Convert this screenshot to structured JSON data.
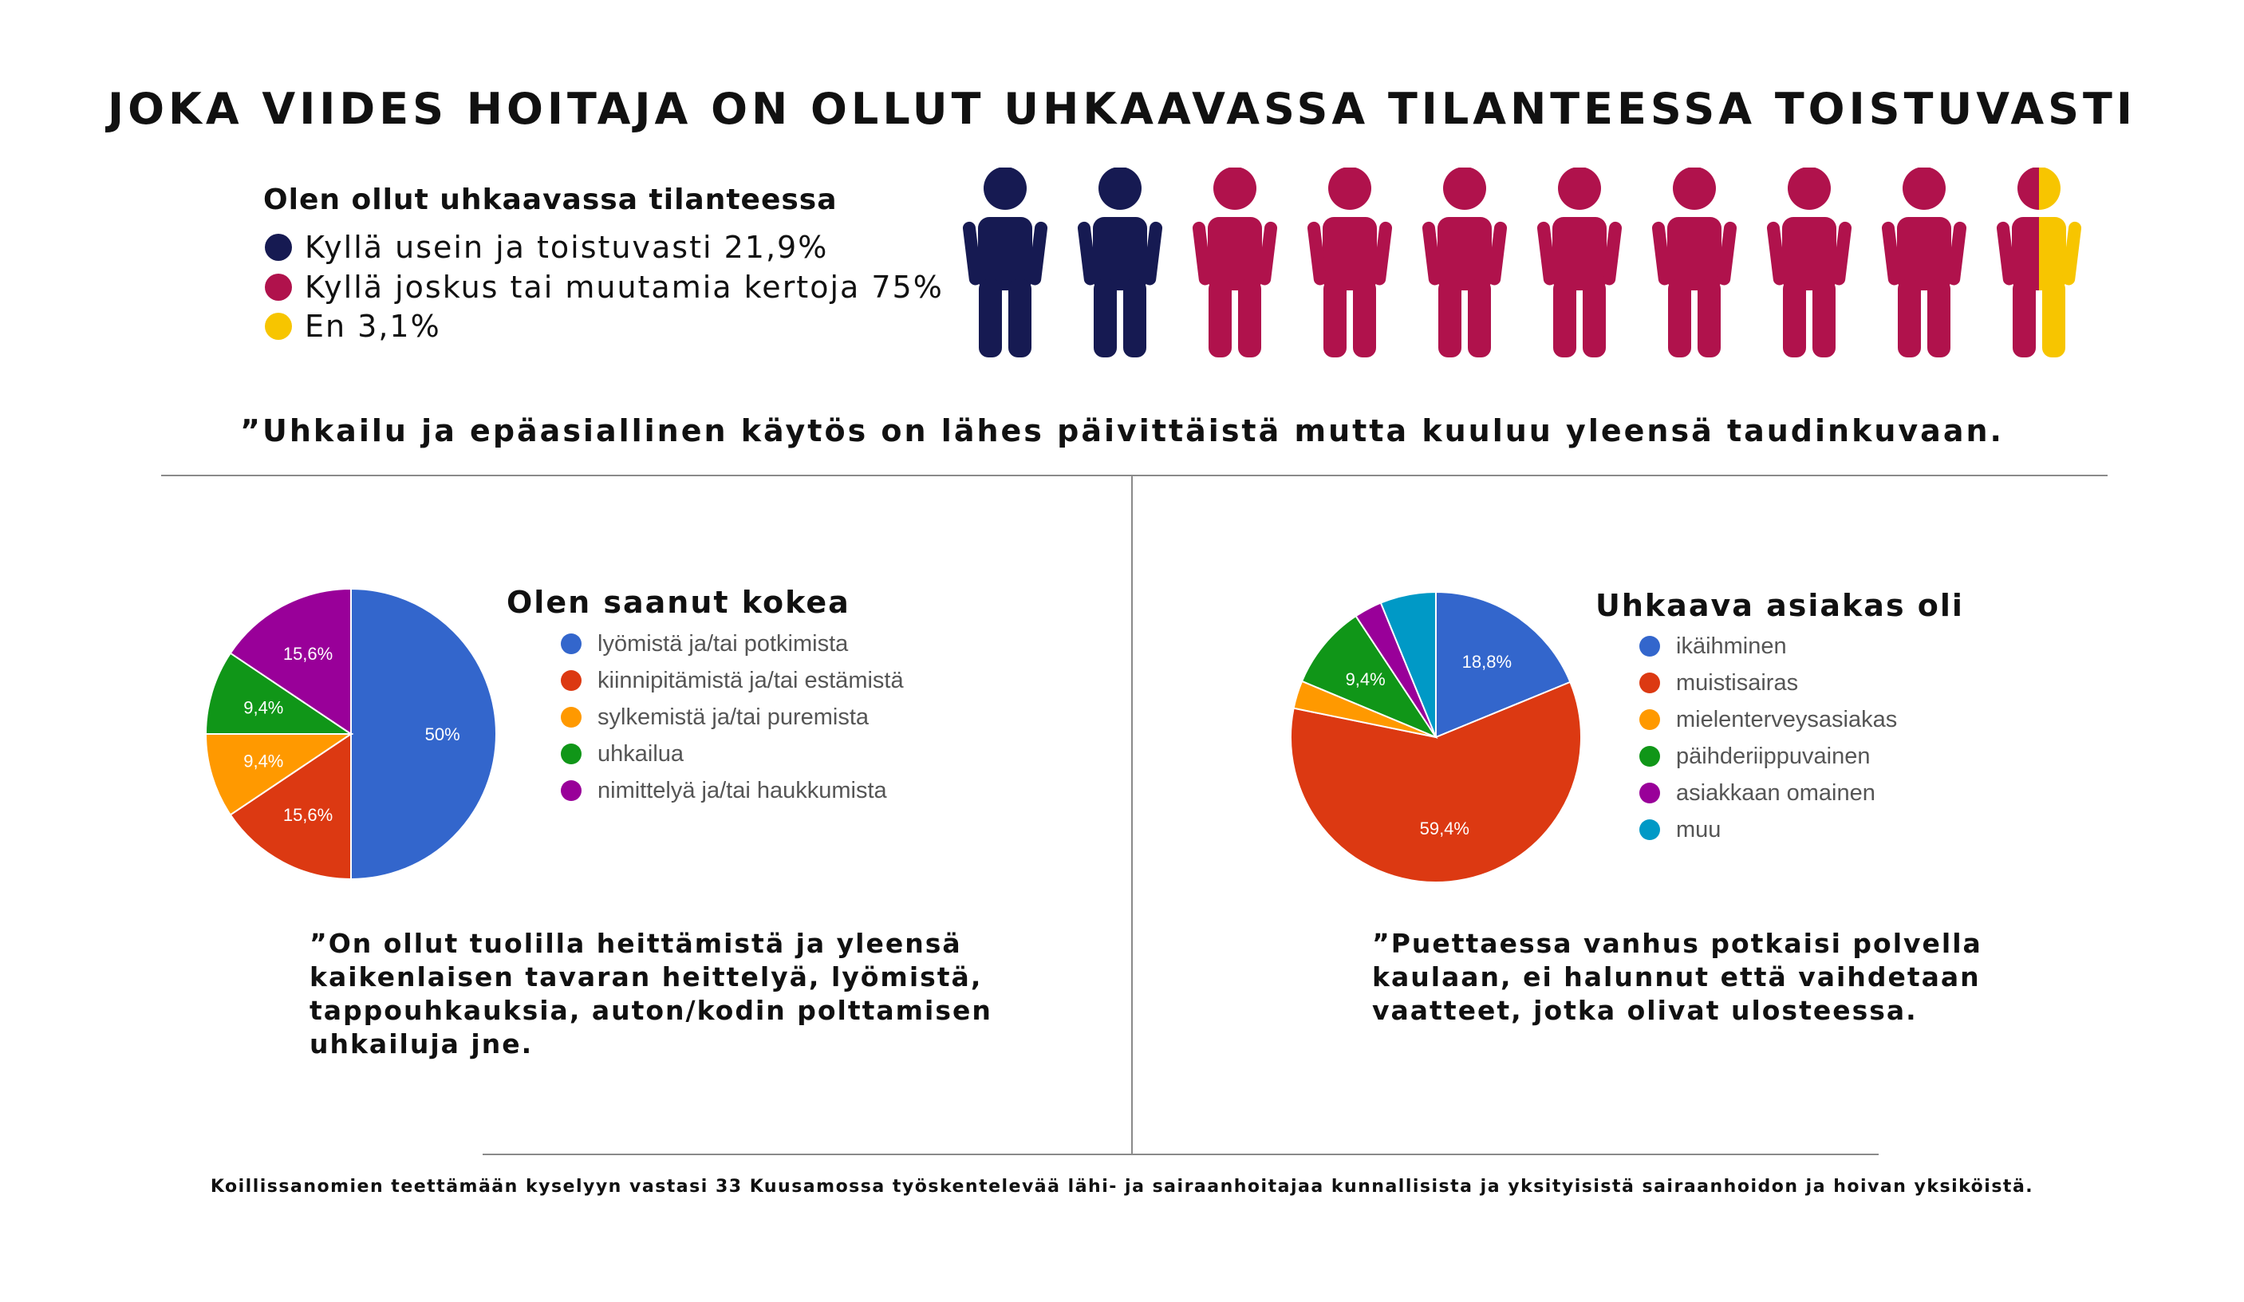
{
  "title": "JOKA VIIDES HOITAJA ON OLLUT UHKAAVASSA TILANTEESSA TOISTUVASTI",
  "top_legend": {
    "title": "Olen ollut uhkaavassa tilanteessa",
    "items": [
      {
        "label": "Kyllä usein ja toistuvasti 21,9%",
        "color": "#161a52"
      },
      {
        "label": "Kyllä joskus tai muutamia kertoja 75%",
        "color": "#b0124c"
      },
      {
        "label": "En 3,1%",
        "color": "#f7c500"
      }
    ]
  },
  "quote_top": "”Uhkailu ja epäasiallinen käytös on lähes päivittäistä mutta kuuluu yleensä taudinkuvaan.",
  "quote_left": [
    " ”On ollut tuolilla heittämistä ja yleensä",
    "kaikenlaisen tavaran heittelyä, lyömistä,",
    "tappouhkauksia, auton/kodin polttamisen",
    "uhkailuja jne."
  ],
  "quote_right": [
    "”Puettaessa vanhus potkaisi polvella",
    "kaulaan, ei halunnut että vaihdetaan",
    "vaatteet, jotka olivat ulosteessa."
  ],
  "footer": "Koillissanomien teettämään kyselyyn vastasi 33 Kuusamossa työskentelevää lähi- ja sairaanhoitajaa kunnallisista ja yksityisistä sairaanhoidon ja hoivan yksiköistä.",
  "chart_data": [
    {
      "type": "pictograph",
      "title": "Olen ollut uhkaavassa tilanteessa",
      "series": [
        {
          "name": "Kyllä usein ja toistuvasti",
          "value": 21.9,
          "color": "#161a52"
        },
        {
          "name": "Kyllä joskus tai muutamia kertoja",
          "value": 75,
          "color": "#b0124c"
        },
        {
          "name": "En",
          "value": 3.1,
          "color": "#f7c500"
        }
      ],
      "figures": 10,
      "figure_fills": [
        [
          1
        ],
        [
          1
        ],
        [
          2
        ],
        [
          2
        ],
        [
          2
        ],
        [
          2
        ],
        [
          2
        ],
        [
          2
        ],
        [
          2
        ],
        [
          2,
          3
        ]
      ]
    },
    {
      "type": "pie",
      "title": "Olen saanut kokea",
      "categories": [
        "lyömistä ja/tai potkimista",
        "kiinnipitämistä ja/tai estämistä",
        "sylkemistä ja/tai puremista",
        "uhkailua",
        "nimittelyä ja/tai haukkumista"
      ],
      "values": [
        50,
        15.6,
        9.4,
        9.4,
        15.6
      ],
      "labels": [
        "50%",
        "15,6%",
        "9,4%",
        "9,4%",
        "15,6%"
      ],
      "colors": [
        "#3366cc",
        "#dc3912",
        "#ff9900",
        "#109618",
        "#990099"
      ],
      "start_angle_deg": 90,
      "direction": "clockwise",
      "legend_position": "right"
    },
    {
      "type": "pie",
      "title": "Uhkaava asiakas oli",
      "categories": [
        "ikäihminen",
        "muistisairas",
        "mielenterveysasiakas",
        "päihderiippuvainen",
        "asiakkaan omainen",
        "muu"
      ],
      "values": [
        18.8,
        59.4,
        3.1,
        9.4,
        3.1,
        6.2
      ],
      "labels": [
        "18,8%",
        "59,4%",
        "",
        "9,4%",
        "",
        ""
      ],
      "colors": [
        "#3366cc",
        "#dc3912",
        "#ff9900",
        "#109618",
        "#990099",
        "#0099c6"
      ],
      "start_angle_deg": 90,
      "direction": "clockwise",
      "legend_position": "right"
    }
  ]
}
